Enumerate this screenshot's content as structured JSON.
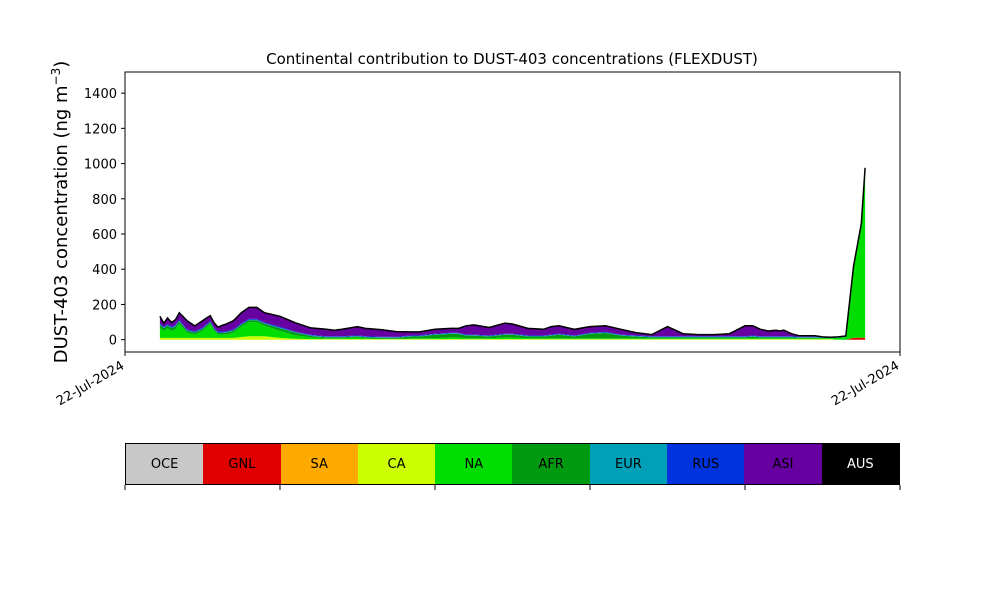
{
  "chart_data": {
    "type": "area",
    "title": "Continental contribution to DUST-403 concentrations (FLEXDUST)",
    "ylabel_main": "DUST-403 concentration (ng m",
    "ylabel_sup": "−3",
    "ylabel_close": ")",
    "xlabel": "",
    "ylim": [
      -70,
      1520
    ],
    "yticks": [
      0,
      200,
      400,
      600,
      800,
      1000,
      1200,
      1400
    ],
    "xlim": [
      0,
      1
    ],
    "xtick_labels": [
      "22-Jul-2024",
      "22-Jul-2024"
    ],
    "grid": false,
    "x": [
      0.045,
      0.05,
      0.055,
      0.06,
      0.065,
      0.07,
      0.08,
      0.09,
      0.1,
      0.105,
      0.11,
      0.115,
      0.12,
      0.125,
      0.13,
      0.14,
      0.15,
      0.16,
      0.17,
      0.18,
      0.2,
      0.22,
      0.24,
      0.26,
      0.27,
      0.28,
      0.3,
      0.31,
      0.33,
      0.35,
      0.37,
      0.38,
      0.4,
      0.42,
      0.43,
      0.44,
      0.45,
      0.47,
      0.49,
      0.5,
      0.52,
      0.54,
      0.55,
      0.56,
      0.58,
      0.6,
      0.62,
      0.64,
      0.66,
      0.68,
      0.7,
      0.72,
      0.74,
      0.76,
      0.78,
      0.8,
      0.81,
      0.82,
      0.83,
      0.84,
      0.845,
      0.85,
      0.86,
      0.87,
      0.88,
      0.89,
      0.9,
      0.91,
      0.92,
      0.93,
      0.94,
      0.95,
      0.955
    ],
    "series": [
      {
        "name": "AUS",
        "color": "#000000",
        "values": [
          0,
          0,
          0,
          0,
          0,
          0,
          0,
          0,
          0,
          0,
          0,
          0,
          0,
          0,
          0,
          0,
          0,
          0,
          0,
          0,
          0,
          0,
          0,
          0,
          0,
          0,
          0,
          0,
          0,
          0,
          0,
          0,
          0,
          0,
          0,
          0,
          0,
          0,
          0,
          0,
          0,
          0,
          0,
          0,
          0,
          0,
          0,
          0,
          0,
          0,
          0,
          0,
          0,
          0,
          0,
          0,
          0,
          0,
          0,
          0,
          0,
          0,
          0,
          0,
          0,
          0,
          0,
          0,
          0,
          0,
          0,
          0,
          0
        ]
      },
      {
        "name": "ASI",
        "color": "#6600a0",
        "values": [
          40,
          20,
          35,
          25,
          30,
          40,
          50,
          30,
          40,
          35,
          30,
          30,
          25,
          35,
          40,
          50,
          60,
          65,
          65,
          55,
          60,
          50,
          40,
          40,
          35,
          40,
          50,
          45,
          40,
          30,
          20,
          20,
          25,
          25,
          25,
          50,
          55,
          45,
          60,
          55,
          40,
          35,
          45,
          45,
          35,
          35,
          35,
          30,
          15,
          10,
          55,
          15,
          10,
          10,
          15,
          60,
          55,
          40,
          30,
          35,
          30,
          35,
          15,
          5,
          5,
          5,
          0,
          0,
          0,
          0,
          0,
          0,
          0
        ]
      },
      {
        "name": "RUS",
        "color": "#0033dd",
        "values": [
          5,
          5,
          5,
          5,
          5,
          5,
          5,
          5,
          5,
          5,
          5,
          5,
          5,
          5,
          5,
          5,
          5,
          5,
          5,
          5,
          5,
          3,
          3,
          3,
          3,
          3,
          3,
          3,
          3,
          3,
          3,
          3,
          3,
          3,
          3,
          3,
          3,
          3,
          3,
          3,
          3,
          3,
          3,
          3,
          3,
          3,
          3,
          3,
          3,
          3,
          3,
          3,
          3,
          3,
          3,
          3,
          3,
          3,
          3,
          3,
          3,
          3,
          3,
          3,
          3,
          3,
          3,
          3,
          3,
          3,
          3,
          3,
          3
        ]
      },
      {
        "name": "EUR",
        "color": "#00a0b8",
        "values": [
          3,
          3,
          3,
          3,
          3,
          3,
          3,
          3,
          3,
          3,
          3,
          3,
          3,
          3,
          3,
          3,
          3,
          3,
          3,
          3,
          3,
          3,
          3,
          3,
          3,
          3,
          3,
          3,
          3,
          3,
          3,
          3,
          3,
          3,
          3,
          3,
          3,
          3,
          3,
          3,
          3,
          3,
          3,
          3,
          3,
          3,
          3,
          3,
          3,
          3,
          3,
          3,
          3,
          3,
          3,
          3,
          3,
          3,
          3,
          3,
          3,
          3,
          3,
          3,
          3,
          3,
          3,
          3,
          3,
          3,
          3,
          3,
          3
        ]
      },
      {
        "name": "AFR",
        "color": "#009a10",
        "values": [
          15,
          15,
          15,
          15,
          15,
          15,
          10,
          10,
          10,
          10,
          8,
          8,
          8,
          8,
          10,
          10,
          10,
          10,
          10,
          10,
          15,
          15,
          8,
          5,
          5,
          5,
          5,
          5,
          5,
          5,
          10,
          10,
          20,
          20,
          20,
          15,
          15,
          10,
          15,
          15,
          10,
          10,
          15,
          20,
          10,
          25,
          30,
          15,
          10,
          5,
          5,
          5,
          5,
          5,
          5,
          5,
          10,
          5,
          5,
          5,
          5,
          5,
          5,
          3,
          3,
          3,
          2,
          0,
          0,
          0,
          0,
          0,
          0
        ]
      },
      {
        "name": "NA",
        "color": "#00dd00",
        "values": [
          60,
          40,
          55,
          40,
          50,
          80,
          30,
          20,
          40,
          60,
          80,
          40,
          20,
          20,
          20,
          30,
          60,
          80,
          80,
          60,
          40,
          20,
          10,
          5,
          5,
          5,
          10,
          5,
          3,
          2,
          5,
          5,
          5,
          10,
          10,
          5,
          5,
          5,
          10,
          10,
          5,
          5,
          5,
          5,
          5,
          5,
          5,
          5,
          5,
          5,
          5,
          5,
          5,
          5,
          5,
          5,
          5,
          5,
          5,
          5,
          5,
          5,
          5,
          5,
          5,
          5,
          5,
          5,
          10,
          15,
          400,
          640,
          960
        ]
      },
      {
        "name": "CA",
        "color": "#ccff00",
        "values": [
          10,
          10,
          10,
          10,
          10,
          10,
          10,
          10,
          10,
          10,
          10,
          10,
          10,
          10,
          10,
          10,
          15,
          20,
          20,
          20,
          10,
          5,
          3,
          3,
          3,
          3,
          3,
          3,
          3,
          3,
          3,
          3,
          3,
          3,
          3,
          3,
          3,
          3,
          3,
          3,
          3,
          3,
          3,
          3,
          3,
          3,
          3,
          3,
          3,
          3,
          3,
          3,
          3,
          3,
          3,
          3,
          3,
          3,
          3,
          3,
          3,
          3,
          3,
          3,
          3,
          3,
          3,
          3,
          0,
          0,
          0,
          0,
          0
        ]
      },
      {
        "name": "SA",
        "color": "#ffaa00",
        "values": [
          0,
          0,
          0,
          0,
          0,
          0,
          0,
          0,
          0,
          0,
          0,
          0,
          0,
          0,
          0,
          0,
          0,
          0,
          0,
          0,
          0,
          0,
          0,
          0,
          0,
          0,
          0,
          0,
          0,
          0,
          0,
          0,
          0,
          0,
          0,
          0,
          0,
          0,
          0,
          0,
          0,
          0,
          0,
          0,
          0,
          0,
          0,
          0,
          0,
          0,
          0,
          0,
          0,
          0,
          0,
          0,
          0,
          0,
          0,
          0,
          0,
          0,
          0,
          0,
          0,
          0,
          0,
          0,
          0,
          0,
          0,
          0,
          0
        ]
      },
      {
        "name": "GNL",
        "color": "#e00000",
        "values": [
          0,
          0,
          0,
          0,
          0,
          0,
          0,
          0,
          0,
          0,
          0,
          0,
          0,
          0,
          0,
          0,
          0,
          0,
          0,
          0,
          0,
          0,
          0,
          0,
          0,
          0,
          0,
          0,
          0,
          0,
          0,
          0,
          0,
          0,
          0,
          0,
          0,
          0,
          0,
          0,
          0,
          0,
          0,
          0,
          0,
          0,
          0,
          0,
          0,
          0,
          0,
          0,
          0,
          0,
          0,
          0,
          0,
          0,
          0,
          0,
          0,
          0,
          0,
          0,
          0,
          0,
          0,
          0,
          0,
          0,
          10,
          12,
          10
        ]
      },
      {
        "name": "OCE",
        "color": "#c8c8c8",
        "values": [
          0,
          0,
          0,
          0,
          0,
          0,
          0,
          0,
          0,
          0,
          0,
          0,
          0,
          0,
          0,
          0,
          0,
          0,
          0,
          0,
          0,
          0,
          0,
          0,
          0,
          0,
          0,
          0,
          0,
          0,
          0,
          0,
          0,
          0,
          0,
          0,
          0,
          0,
          0,
          0,
          0,
          0,
          0,
          0,
          0,
          0,
          0,
          0,
          0,
          0,
          0,
          0,
          0,
          0,
          0,
          0,
          0,
          0,
          0,
          0,
          0,
          0,
          0,
          0,
          0,
          0,
          0,
          0,
          0,
          0,
          0,
          0,
          0
        ]
      }
    ],
    "stack_order": [
      "OCE",
      "GNL",
      "SA",
      "CA",
      "NA",
      "AFR",
      "EUR",
      "RUS",
      "ASI",
      "AUS"
    ],
    "total_line_color": "#000000"
  },
  "legend": {
    "items": [
      {
        "label": "OCE",
        "color": "#c8c8c8",
        "dark": false
      },
      {
        "label": "GNL",
        "color": "#e00000",
        "dark": false
      },
      {
        "label": "SA",
        "color": "#ffaa00",
        "dark": false
      },
      {
        "label": "CA",
        "color": "#ccff00",
        "dark": false
      },
      {
        "label": "NA",
        "color": "#00dd00",
        "dark": false
      },
      {
        "label": "AFR",
        "color": "#009a10",
        "dark": false
      },
      {
        "label": "EUR",
        "color": "#00a0b8",
        "dark": false
      },
      {
        "label": "RUS",
        "color": "#0033dd",
        "dark": false
      },
      {
        "label": "ASI",
        "color": "#6600a0",
        "dark": false
      },
      {
        "label": "AUS",
        "color": "#000000",
        "dark": true
      }
    ]
  }
}
